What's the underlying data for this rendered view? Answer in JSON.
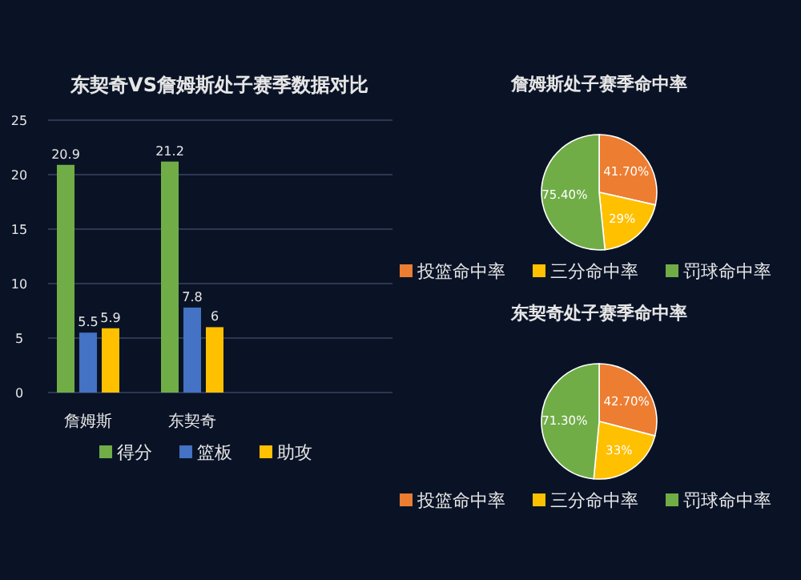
{
  "chart_data": [
    {
      "type": "bar",
      "title": "东契奇VS詹姆斯处子赛季数据对比",
      "categories": [
        "詹姆斯",
        "东契奇"
      ],
      "series": [
        {
          "name": "得分",
          "color": "#70ad47",
          "values": [
            20.9,
            21.2
          ]
        },
        {
          "name": "篮板",
          "color": "#4472c4",
          "values": [
            5.5,
            7.8
          ]
        },
        {
          "name": "助攻",
          "color": "#ffc000",
          "values": [
            5.9,
            6
          ]
        }
      ],
      "ylim": [
        0,
        25
      ],
      "yticks": [
        0,
        5,
        10,
        15,
        20,
        25
      ],
      "grid": "y",
      "data_labels": true,
      "legend": "bottom"
    },
    {
      "type": "pie",
      "title": "詹姆斯处子赛季命中率",
      "categories": [
        "投篮命中率",
        "三分命中率",
        "罚球命中率"
      ],
      "values": [
        41.7,
        29,
        75.4
      ],
      "value_labels": [
        "41.70%",
        "29%",
        "75.40%"
      ],
      "colors": [
        "#ed7d31",
        "#ffc000",
        "#70ad47"
      ],
      "legend": "bottom"
    },
    {
      "type": "pie",
      "title": "东契奇处子赛季命中率",
      "categories": [
        "投篮命中率",
        "三分命中率",
        "罚球命中率"
      ],
      "values": [
        42.7,
        33,
        71.3
      ],
      "value_labels": [
        "42.70%",
        "33%",
        "71.30%"
      ],
      "colors": [
        "#ed7d31",
        "#ffc000",
        "#70ad47"
      ],
      "legend": "bottom"
    }
  ]
}
